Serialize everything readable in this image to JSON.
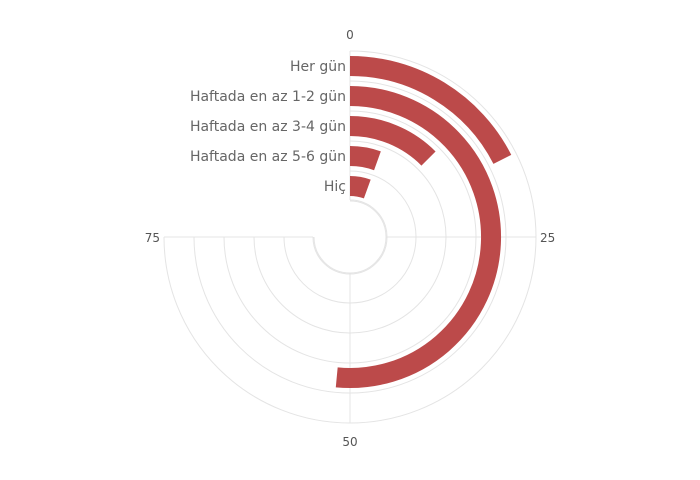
{
  "chart_data": {
    "type": "radial_bar",
    "title": "",
    "angular_axis": {
      "range": [
        0,
        100
      ],
      "direction": "clockwise",
      "start": "top",
      "ticks": [
        0,
        25,
        50,
        75
      ],
      "tick_labels": [
        "0",
        "25",
        "50",
        "75"
      ],
      "visible_range": [
        0,
        75
      ]
    },
    "categories": [
      "Her gün",
      "Haftada en az 1-2 gün",
      "Haftada en az 3-4 gün",
      "Haftada en az 5-6 gün",
      "Hiç"
    ],
    "values": [
      17.5,
      51.5,
      12.5,
      5.5,
      5.5
    ],
    "bar_color": "#bc4a4a",
    "grid": true
  }
}
